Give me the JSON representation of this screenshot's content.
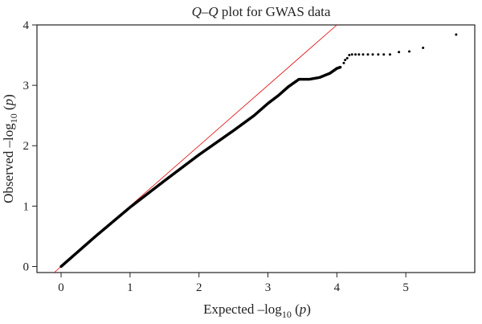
{
  "chart_data": {
    "type": "scatter",
    "title_prefix": "Q",
    "title_dash": "–",
    "title_suffix": " plot for GWAS data",
    "xlabel_text": "Expected –log",
    "xlabel_sub": "10",
    "xlabel_paren_open": " (",
    "xlabel_p": "p",
    "xlabel_paren_close": ")",
    "ylabel_text": "Observed –log",
    "ylabel_sub": "10",
    "ylabel_paren_open": " (",
    "ylabel_p": "p",
    "ylabel_paren_close": ")",
    "xlim": [
      -0.35,
      6.0
    ],
    "ylim": [
      -0.1,
      4.0
    ],
    "xticks": [
      0,
      1,
      2,
      3,
      4,
      5
    ],
    "yticks": [
      0,
      1,
      2,
      3,
      4
    ],
    "tick_labels_x": [
      "0",
      "1",
      "2",
      "3",
      "4",
      "5"
    ],
    "tick_labels_y": [
      "0",
      "1",
      "2",
      "3",
      "4"
    ],
    "grid": false,
    "reference_line": {
      "slope": 1,
      "intercept": 0,
      "color": "#dd0000"
    },
    "point_color": "#000000",
    "curve_knots": [
      [
        0.0,
        0.0
      ],
      [
        0.5,
        0.5
      ],
      [
        1.0,
        0.98
      ],
      [
        1.5,
        1.42
      ],
      [
        2.0,
        1.85
      ],
      [
        2.5,
        2.25
      ],
      [
        2.8,
        2.5
      ],
      [
        3.0,
        2.7
      ],
      [
        3.15,
        2.83
      ],
      [
        3.3,
        2.98
      ],
      [
        3.45,
        3.1
      ],
      [
        3.6,
        3.1
      ],
      [
        3.75,
        3.13
      ],
      [
        3.9,
        3.2
      ],
      [
        4.0,
        3.28
      ],
      [
        4.05,
        3.3
      ]
    ],
    "tail_points": [
      [
        4.1,
        3.37
      ],
      [
        4.12,
        3.42
      ],
      [
        4.15,
        3.45
      ],
      [
        4.18,
        3.5
      ],
      [
        4.22,
        3.51
      ],
      [
        4.27,
        3.51
      ],
      [
        4.32,
        3.51
      ],
      [
        4.38,
        3.51
      ],
      [
        4.45,
        3.51
      ],
      [
        4.52,
        3.51
      ],
      [
        4.6,
        3.51
      ],
      [
        4.68,
        3.51
      ],
      [
        4.77,
        3.51
      ],
      [
        4.9,
        3.55
      ],
      [
        5.05,
        3.56
      ],
      [
        5.25,
        3.62
      ],
      [
        5.73,
        3.84
      ]
    ]
  }
}
